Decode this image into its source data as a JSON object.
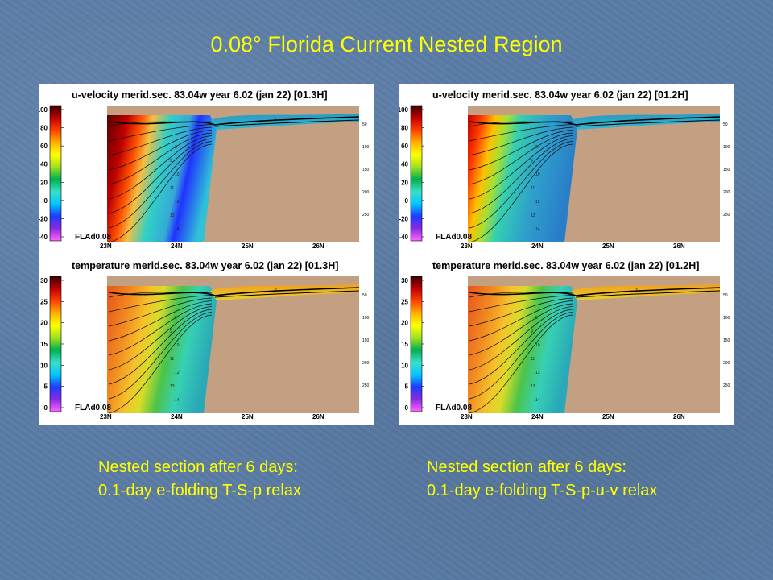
{
  "slide": {
    "title": "0.08° Florida Current Nested Region"
  },
  "figures": [
    {
      "id": "left",
      "caption": [
        "Nested section after 6 days:",
        "0.1-day e-folding T-S-p relax"
      ],
      "panels": [
        {
          "variable": "u-velocity",
          "title": "u-velocity merid.sec. 83.04w   year   6.02 (jan 22) [01.3H]",
          "colorbar_ticks": [
            "100",
            "80",
            "60",
            "40",
            "20",
            "0",
            "-20",
            "-40"
          ],
          "x_ticks": [
            "23N",
            "24N",
            "25N",
            "26N"
          ],
          "depth_ticks": [
            "50",
            "100",
            "150",
            "200",
            "250"
          ],
          "contour_labels": [
            "7",
            "8",
            "9",
            "10",
            "11",
            "12",
            "13",
            "14"
          ],
          "experiment_label": "FLAd0.08"
        },
        {
          "variable": "temperature",
          "title": "temperature merid.sec. 83.04w   year   6.02 (jan 22) [01.3H]",
          "colorbar_ticks": [
            "30",
            "25",
            "20",
            "15",
            "10",
            "5",
            "0"
          ],
          "x_ticks": [
            "23N",
            "24N",
            "25N",
            "26N"
          ],
          "depth_ticks": [
            "50",
            "100",
            "150",
            "200",
            "250"
          ],
          "contour_labels": [
            "7",
            "8",
            "9",
            "10",
            "11",
            "12",
            "13",
            "14"
          ],
          "experiment_label": "FLAd0.08"
        }
      ]
    },
    {
      "id": "right",
      "caption": [
        "Nested section after 6 days:",
        "0.1-day e-folding T-S-p-u-v relax"
      ],
      "panels": [
        {
          "variable": "u-velocity",
          "title": "u-velocity merid.sec. 83.04w   year   6.02 (jan 22) [01.2H]",
          "colorbar_ticks": [
            "100",
            "80",
            "60",
            "40",
            "20",
            "0",
            "-20",
            "-40"
          ],
          "x_ticks": [
            "23N",
            "24N",
            "25N",
            "26N"
          ],
          "depth_ticks": [
            "50",
            "100",
            "150",
            "200",
            "250"
          ],
          "contour_labels": [
            "7",
            "8",
            "9",
            "10",
            "11",
            "12",
            "13",
            "14"
          ],
          "experiment_label": "FLAd0.08"
        },
        {
          "variable": "temperature",
          "title": "temperature merid.sec. 83.04w   year   6.02 (jan 22) [01.2H]",
          "colorbar_ticks": [
            "30",
            "25",
            "20",
            "15",
            "10",
            "5",
            "0"
          ],
          "x_ticks": [
            "23N",
            "24N",
            "25N",
            "26N"
          ],
          "depth_ticks": [
            "50",
            "100",
            "150",
            "200",
            "250"
          ],
          "contour_labels": [
            "7",
            "8",
            "9",
            "10",
            "11",
            "12",
            "13",
            "14"
          ],
          "experiment_label": "FLAd0.08"
        }
      ]
    }
  ],
  "colors": {
    "text_accent": "#ffff00",
    "background": "#5a7ca6",
    "land": "#c4a083",
    "velocity_colormap": [
      "#ff66ff",
      "#8a2be2",
      "#1e3cff",
      "#00c8ff",
      "#38e0c8",
      "#00b050",
      "#a0e020",
      "#ffff00",
      "#ffb000",
      "#ff4000",
      "#c00000",
      "#3a0000"
    ],
    "temperature_colormap": [
      "#ff66ff",
      "#8a2be2",
      "#1e3cff",
      "#00c8ff",
      "#38e0c8",
      "#00b050",
      "#a0e020",
      "#ffff00",
      "#ffb000",
      "#ff4000",
      "#c00000",
      "#3a0000"
    ]
  }
}
